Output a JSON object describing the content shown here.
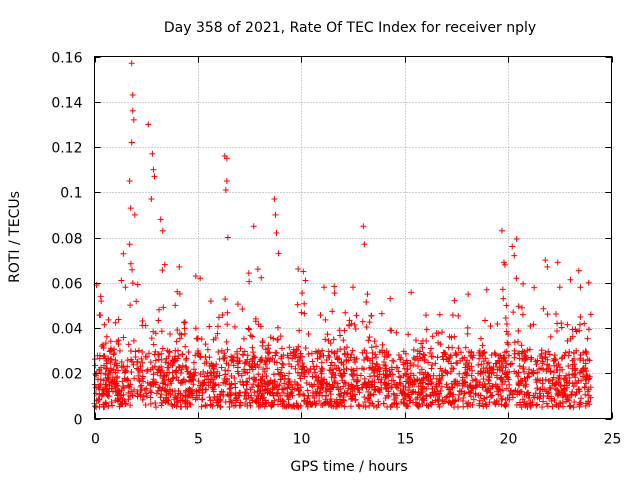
{
  "chart_data": {
    "type": "scatter",
    "title": "Day 358 of 2021, Rate Of TEC Index for receiver nply",
    "xlabel": "GPS time / hours",
    "ylabel": "ROTI / TECUs",
    "xlim": [
      0,
      25
    ],
    "ylim": [
      0,
      0.16
    ],
    "xticks": [
      0,
      5,
      10,
      15,
      20,
      25
    ],
    "xtick_labels": [
      "0",
      "5",
      "10",
      "15",
      "20",
      "25"
    ],
    "yticks": [
      0,
      0.02,
      0.04,
      0.06,
      0.08,
      0.1,
      0.12,
      0.14,
      0.16
    ],
    "ytick_labels": [
      "0",
      "0.02",
      "0.04",
      "0.06",
      "0.08",
      "0.1",
      "0.12",
      "0.14",
      "0.16"
    ],
    "grid": true,
    "marker": "+",
    "series": [
      {
        "name": "ROTI",
        "color": "#ff0000",
        "data_range_hours": [
          0,
          24
        ],
        "baseline_range": [
          0.005,
          0.03
        ],
        "notable_points": [
          [
            0.1,
            0.059
          ],
          [
            0.3,
            0.054
          ],
          [
            1.3,
            0.061
          ],
          [
            1.7,
            0.105
          ],
          [
            1.75,
            0.093
          ],
          [
            1.8,
            0.122
          ],
          [
            1.8,
            0.157
          ],
          [
            1.85,
            0.143
          ],
          [
            1.85,
            0.136
          ],
          [
            1.9,
            0.132
          ],
          [
            1.95,
            0.09
          ],
          [
            1.7,
            0.077
          ],
          [
            2.6,
            0.13
          ],
          [
            2.8,
            0.117
          ],
          [
            2.85,
            0.11
          ],
          [
            2.9,
            0.107
          ],
          [
            2.75,
            0.097
          ],
          [
            3.2,
            0.088
          ],
          [
            3.3,
            0.083
          ],
          [
            3.4,
            0.068
          ],
          [
            4.1,
            0.067
          ],
          [
            4.0,
            0.056
          ],
          [
            4.9,
            0.063
          ],
          [
            6.3,
            0.116
          ],
          [
            6.4,
            0.115
          ],
          [
            6.4,
            0.105
          ],
          [
            6.35,
            0.101
          ],
          [
            6.45,
            0.08
          ],
          [
            7.7,
            0.085
          ],
          [
            7.9,
            0.066
          ],
          [
            8.7,
            0.097
          ],
          [
            8.75,
            0.09
          ],
          [
            8.8,
            0.082
          ],
          [
            8.9,
            0.073
          ],
          [
            10.1,
            0.065
          ],
          [
            10.2,
            0.061
          ],
          [
            11.1,
            0.058
          ],
          [
            12.5,
            0.058
          ],
          [
            13.0,
            0.085
          ],
          [
            13.05,
            0.077
          ],
          [
            13.2,
            0.055
          ],
          [
            14.3,
            0.053
          ],
          [
            19.7,
            0.083
          ],
          [
            19.8,
            0.069
          ],
          [
            20.2,
            0.076
          ],
          [
            20.3,
            0.072
          ],
          [
            20.4,
            0.062
          ],
          [
            21.8,
            0.07
          ],
          [
            21.9,
            0.067
          ],
          [
            22.4,
            0.069
          ],
          [
            22.5,
            0.058
          ],
          [
            23.5,
            0.058
          ],
          [
            23.9,
            0.06
          ],
          [
            24.0,
            0.046
          ]
        ]
      }
    ]
  }
}
